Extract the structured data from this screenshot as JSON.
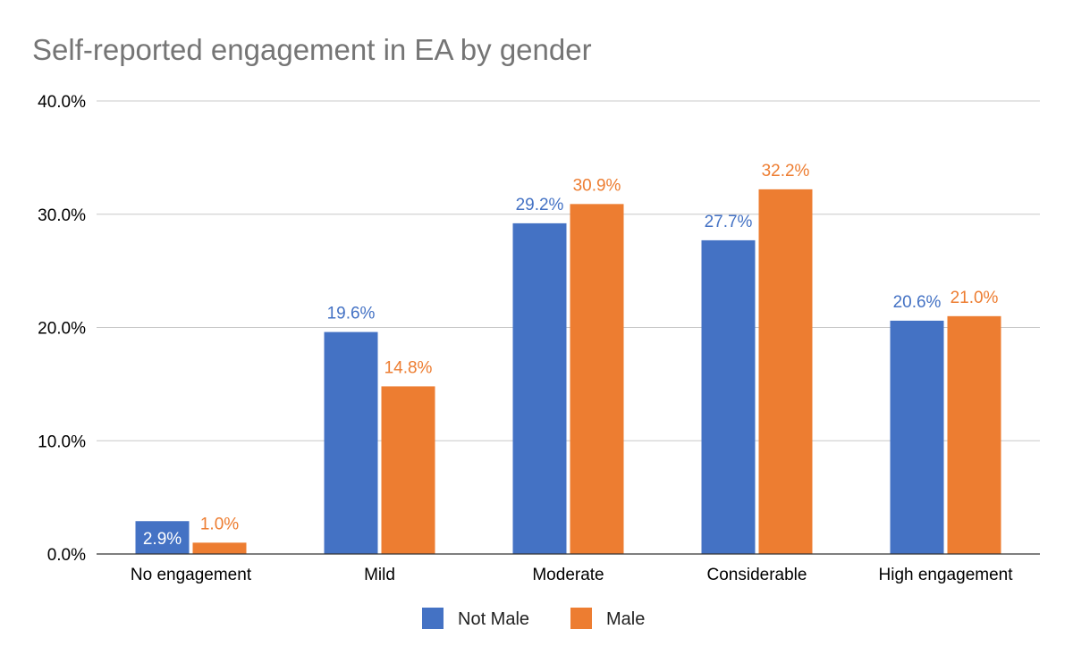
{
  "chart_data": {
    "type": "bar",
    "title": "Self-reported engagement in EA by gender",
    "categories": [
      "No engagement",
      "Mild",
      "Moderate",
      "Considerable",
      "High engagement"
    ],
    "series": [
      {
        "name": "Not Male",
        "color": "#4472C4",
        "values": [
          2.9,
          19.6,
          29.2,
          27.7,
          20.6
        ],
        "labels": [
          "2.9%",
          "19.6%",
          "29.2%",
          "27.7%",
          "20.6%"
        ]
      },
      {
        "name": "Male",
        "color": "#ED7D31",
        "values": [
          1.0,
          14.8,
          30.9,
          32.2,
          21.0
        ],
        "labels": [
          "1.0%",
          "14.8%",
          "30.9%",
          "32.2%",
          "21.0%"
        ]
      }
    ],
    "ylim": [
      0,
      40
    ],
    "yticks": [
      0,
      10,
      20,
      30,
      40
    ],
    "ytick_labels": [
      "0.0%",
      "10.0%",
      "20.0%",
      "30.0%",
      "40.0%"
    ],
    "grid": true,
    "legend_position": "bottom"
  }
}
